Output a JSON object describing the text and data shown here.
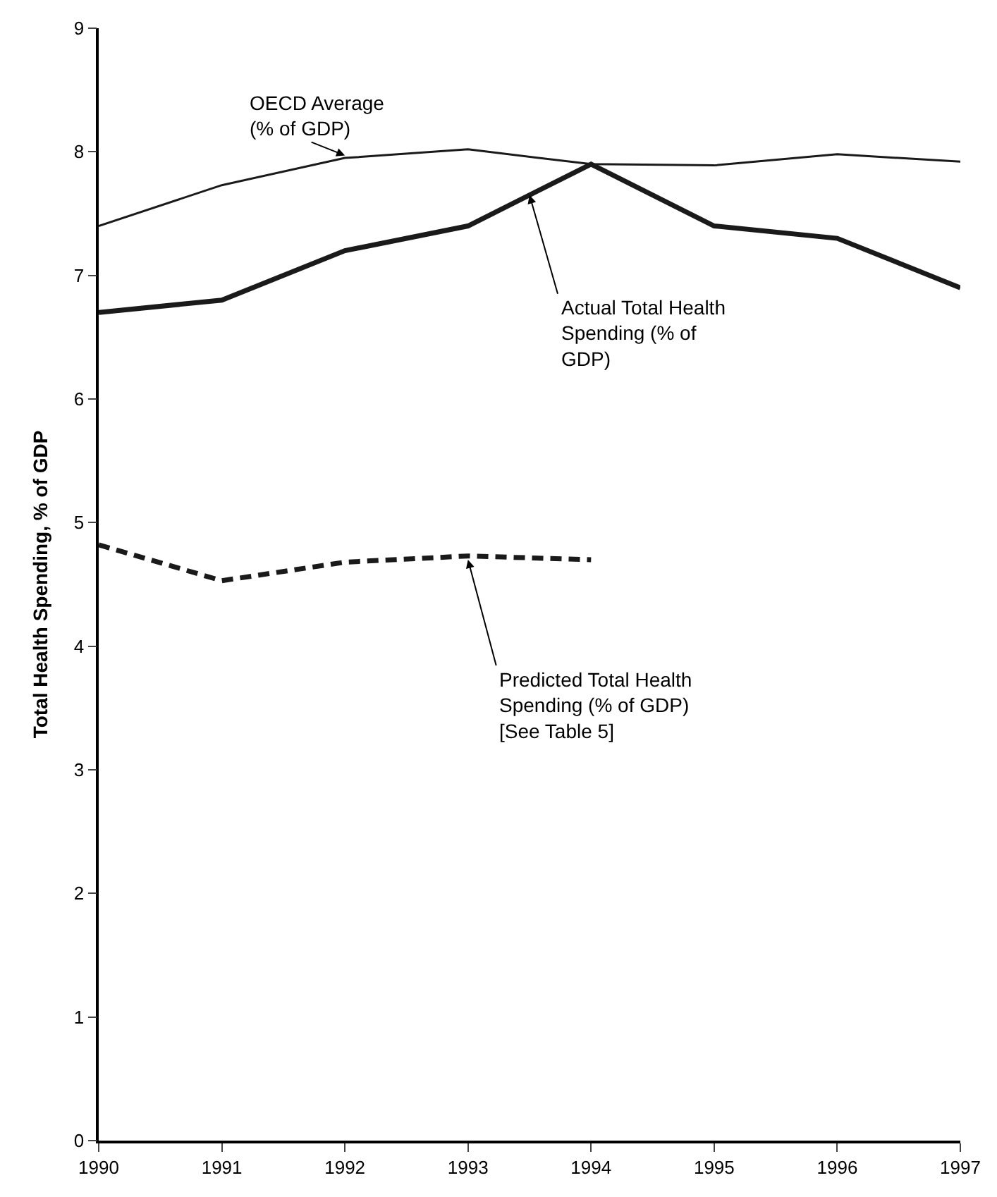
{
  "chart_data": {
    "type": "line",
    "ylabel": "Total Health Spending, % of GDP",
    "x": [
      1990,
      1991,
      1992,
      1993,
      1994,
      1995,
      1996,
      1997
    ],
    "xlim": [
      1990,
      1997
    ],
    "xticks": [
      1990,
      1991,
      1992,
      1993,
      1994,
      1995,
      1996,
      1997
    ],
    "ylim": [
      0,
      9
    ],
    "yticks": [
      0,
      1,
      2,
      3,
      4,
      5,
      6,
      7,
      8,
      9
    ],
    "marker": "none",
    "series": [
      {
        "color": "#1a1a1a",
        "line_style": "solid",
        "values": [
          7.4,
          7.73,
          7.95,
          8.02,
          7.9,
          7.89,
          7.98,
          7.92
        ]
      },
      {
        "color": "#1a1a1a",
        "line_style": "solid",
        "values": [
          6.7,
          6.8,
          7.2,
          7.4,
          7.9,
          7.4,
          7.3,
          6.9
        ]
      },
      {
        "color": "#1a1a1a",
        "line_style": "dashed",
        "values": [
          4.82,
          4.53,
          4.68,
          4.73,
          4.7,
          null,
          null,
          null
        ]
      }
    ],
    "annotations": [
      {
        "text": "OECD Average\n(% of GDP)",
        "x": 1992,
        "y": 7.97
      },
      {
        "text": "Actual Total Health\nSpending (% of\nGDP)",
        "x": 1993.5,
        "y": 7.65
      },
      {
        "text": "Predicted Total Health\nSpending (% of GDP)\n[See Table 5]",
        "x": 1993,
        "y": 4.7
      }
    ]
  }
}
